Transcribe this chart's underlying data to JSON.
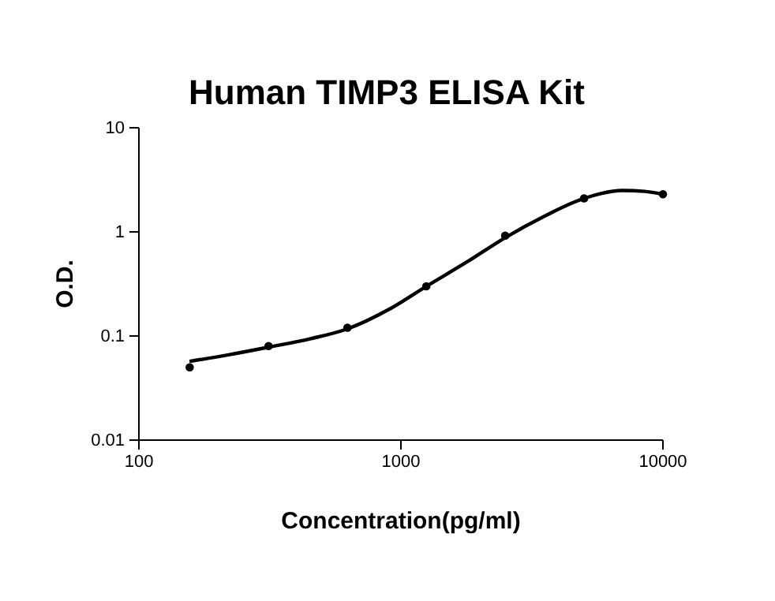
{
  "chart_data": {
    "type": "scatter",
    "title": "Human TIMP3 ELISA Kit",
    "xlabel": "Concentration(pg/ml)",
    "ylabel": "O.D.",
    "log": "xy",
    "xlim": [
      100,
      10000
    ],
    "xticks": [
      100,
      1000,
      10000
    ],
    "ylim": [
      0.01,
      10
    ],
    "yticks": [
      0.01,
      0.1,
      1,
      10
    ],
    "grid": false,
    "series": [
      {
        "color": "#000000",
        "marker": "circle",
        "x": [
          156.25,
          312.5,
          625,
          1250,
          2500,
          5000,
          10000
        ],
        "values": [
          0.05,
          0.08,
          0.12,
          0.3,
          0.92,
          2.1,
          2.3
        ]
      },
      {
        "type": "line",
        "color": "#000000",
        "line_style": "solid",
        "x": [
          156,
          220,
          312,
          450,
          625,
          900,
          1250,
          1800,
          2500,
          3500,
          5000,
          7000,
          8500,
          10000
        ],
        "values": [
          0.057,
          0.066,
          0.078,
          0.094,
          0.117,
          0.18,
          0.3,
          0.52,
          0.88,
          1.4,
          2.1,
          2.5,
          2.45,
          2.3
        ]
      }
    ]
  }
}
